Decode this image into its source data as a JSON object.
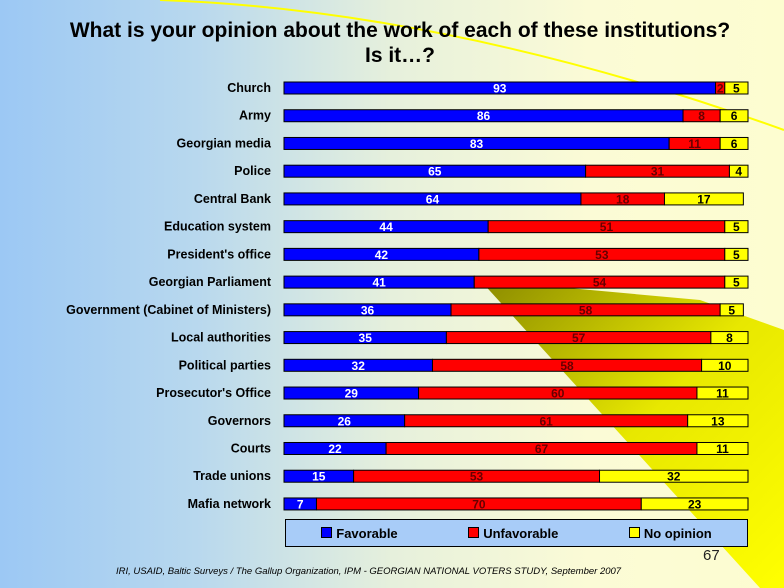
{
  "colors": {
    "favorable": "#0000ff",
    "unfavorable": "#ff0000",
    "no_opinion": "#ffff00"
  },
  "chart_data": {
    "type": "bar",
    "stacked": true,
    "orientation": "horizontal",
    "title": "What is your opinion about the work of each of these institutions?  Is it…?",
    "categories": [
      "Church",
      "Army",
      "Georgian media",
      "Police",
      "Central Bank",
      "Education system",
      "President's office",
      "Georgian Parliament",
      "Government (Cabinet of Ministers)",
      "Local authorities",
      "Political parties",
      "Prosecutor's Office",
      "Governors",
      "Courts",
      "Trade unions",
      "Mafia network"
    ],
    "series": [
      {
        "name": "Favorable",
        "values": [
          93,
          86,
          83,
          65,
          64,
          44,
          42,
          41,
          36,
          35,
          32,
          29,
          26,
          22,
          15,
          7
        ]
      },
      {
        "name": "Unfavorable",
        "values": [
          2,
          8,
          11,
          31,
          18,
          51,
          53,
          54,
          58,
          57,
          58,
          60,
          61,
          67,
          53,
          70
        ]
      },
      {
        "name": "No opinion",
        "values": [
          5,
          6,
          6,
          4,
          17,
          5,
          5,
          5,
          5,
          8,
          10,
          11,
          13,
          11,
          32,
          23
        ]
      }
    ],
    "xlim": [
      0,
      100
    ],
    "legend": "bottom"
  },
  "page_number": "67",
  "source": "IRI, USAID,  Baltic Surveys / The Gallup Organization, IPM - GEORGIAN NATIONAL VOTERS STUDY, September 2007"
}
